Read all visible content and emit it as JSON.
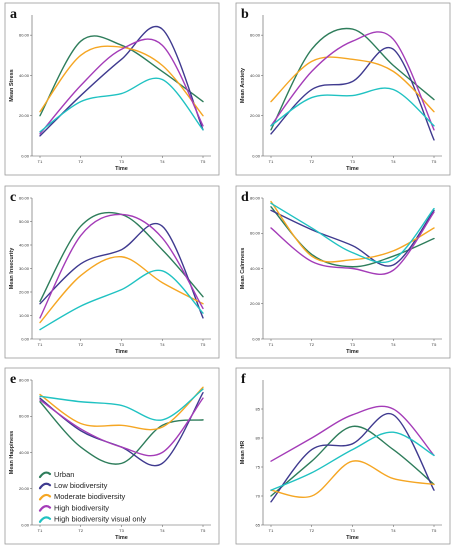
{
  "colors": {
    "Urban": "#2e7d5b",
    "Low biodiversity": "#3f3a8f",
    "Moderate biodiversity": "#f5a623",
    "High biodiversity": "#a43cb8",
    "High biodiversity visual only": "#20c2c2"
  },
  "legend": {
    "entries": [
      "Urban",
      "Low biodiversity",
      "Moderate biodiversity",
      "High biodiversity",
      "High biodiversity visual only"
    ]
  },
  "chart_data": [
    {
      "type": "line",
      "panel": "a",
      "x": [
        "T1",
        "T2",
        "T3",
        "T4",
        "T5"
      ],
      "xlabel": "Time",
      "ylabel": "Mean Stress",
      "ylim": [
        0,
        70
      ],
      "yticks": [
        "0.00",
        "20.00",
        "40.00",
        "60.00"
      ],
      "ytick_values": [
        0,
        20,
        40,
        60
      ],
      "series": [
        {
          "name": "Urban",
          "values": [
            20,
            57,
            55,
            42,
            27
          ]
        },
        {
          "name": "Low biodiversity",
          "values": [
            10,
            30,
            48,
            63,
            13
          ]
        },
        {
          "name": "Moderate biodiversity",
          "values": [
            22,
            50,
            54,
            45,
            20
          ]
        },
        {
          "name": "High biodiversity",
          "values": [
            11,
            35,
            53,
            55,
            15
          ]
        },
        {
          "name": "High biodiversity visual only",
          "values": [
            12,
            27,
            31,
            38,
            13
          ]
        }
      ]
    },
    {
      "type": "line",
      "panel": "b",
      "x": [
        "T1",
        "T2",
        "T3",
        "T4",
        "T5"
      ],
      "xlabel": "Time",
      "ylabel": "Mean Anxiety",
      "ylim": [
        0,
        70
      ],
      "yticks": [
        "0.00",
        "20.00",
        "40.00",
        "60.00"
      ],
      "ytick_values": [
        0,
        20,
        40,
        60
      ],
      "series": [
        {
          "name": "Urban",
          "values": [
            13,
            53,
            63,
            45,
            28
          ]
        },
        {
          "name": "Low biodiversity",
          "values": [
            11,
            33,
            37,
            53,
            8
          ]
        },
        {
          "name": "Moderate biodiversity",
          "values": [
            27,
            47,
            48,
            42,
            22
          ]
        },
        {
          "name": "High biodiversity",
          "values": [
            15,
            42,
            57,
            58,
            13
          ]
        },
        {
          "name": "High biodiversity visual only",
          "values": [
            15,
            29,
            30,
            33,
            15
          ]
        }
      ]
    },
    {
      "type": "line",
      "panel": "c",
      "x": [
        "T1",
        "T2",
        "T3",
        "T4",
        "T5"
      ],
      "xlabel": "Time",
      "ylabel": "Mean Insecurity",
      "ylim": [
        0,
        60
      ],
      "yticks": [
        "0.00",
        "10.00",
        "20.00",
        "30.00",
        "40.00",
        "50.00",
        "60.00"
      ],
      "ytick_values": [
        0,
        10,
        20,
        30,
        40,
        50,
        60
      ],
      "series": [
        {
          "name": "Urban",
          "values": [
            16,
            48,
            53,
            38,
            18
          ]
        },
        {
          "name": "Low biodiversity",
          "values": [
            15,
            32,
            38,
            48,
            9
          ]
        },
        {
          "name": "Moderate biodiversity",
          "values": [
            7,
            27,
            35,
            24,
            15
          ]
        },
        {
          "name": "High biodiversity",
          "values": [
            9,
            44,
            53,
            43,
            13
          ]
        },
        {
          "name": "High biodiversity visual only",
          "values": [
            4,
            14,
            21,
            29,
            11
          ]
        }
      ]
    },
    {
      "type": "line",
      "panel": "d",
      "x": [
        "T1",
        "T2",
        "T3",
        "T4",
        "T5"
      ],
      "xlabel": "Time",
      "ylabel": "Mean Calmness",
      "ylim": [
        0,
        80
      ],
      "yticks": [
        "0.00",
        "20.00",
        "40.00",
        "60.00",
        "80.00"
      ],
      "ytick_values": [
        0,
        20,
        40,
        60,
        80
      ],
      "series": [
        {
          "name": "Urban",
          "values": [
            75,
            48,
            41,
            47,
            57
          ]
        },
        {
          "name": "Low biodiversity",
          "values": [
            73,
            62,
            53,
            42,
            73
          ]
        },
        {
          "name": "Moderate biodiversity",
          "values": [
            78,
            47,
            45,
            50,
            63
          ]
        },
        {
          "name": "High biodiversity",
          "values": [
            63,
            44,
            40,
            39,
            72
          ]
        },
        {
          "name": "High biodiversity visual only",
          "values": [
            77,
            63,
            49,
            45,
            74
          ]
        }
      ]
    },
    {
      "type": "line",
      "panel": "e",
      "x": [
        "T1",
        "T2",
        "T3",
        "T4",
        "T5"
      ],
      "xlabel": "Time",
      "ylabel": "Mean Happiness",
      "ylim": [
        0,
        80
      ],
      "yticks": [
        "0.00",
        "20.00",
        "40.00",
        "60.00",
        "80.00"
      ],
      "ytick_values": [
        0,
        20,
        40,
        60,
        80
      ],
      "series": [
        {
          "name": "Urban",
          "values": [
            68,
            43,
            34,
            55,
            58
          ]
        },
        {
          "name": "Low biodiversity",
          "values": [
            70,
            52,
            43,
            34,
            73
          ]
        },
        {
          "name": "Moderate biodiversity",
          "values": [
            72,
            56,
            55,
            54,
            76
          ]
        },
        {
          "name": "High biodiversity",
          "values": [
            69,
            53,
            43,
            40,
            70
          ]
        },
        {
          "name": "High biodiversity visual only",
          "values": [
            71,
            68,
            66,
            58,
            75
          ]
        }
      ]
    },
    {
      "type": "line",
      "panel": "f",
      "x": [
        "T1",
        "T2",
        "T3",
        "T4",
        "T5"
      ],
      "xlabel": "Time",
      "ylabel": "Mean HR",
      "ylim": [
        65,
        90
      ],
      "yticks": [
        "65",
        "70",
        "75",
        "80",
        "85"
      ],
      "ytick_values": [
        65,
        70,
        75,
        80,
        85
      ],
      "series": [
        {
          "name": "Urban",
          "values": [
            70,
            76,
            82,
            78,
            72
          ]
        },
        {
          "name": "Low biodiversity",
          "values": [
            69,
            78,
            79,
            84,
            71
          ]
        },
        {
          "name": "Moderate biodiversity",
          "values": [
            71,
            70,
            76,
            73,
            72
          ]
        },
        {
          "name": "High biodiversity",
          "values": [
            76,
            80,
            84,
            85,
            77
          ]
        },
        {
          "name": "High biodiversity visual only",
          "values": [
            71,
            74,
            78,
            81,
            77
          ]
        }
      ]
    }
  ]
}
